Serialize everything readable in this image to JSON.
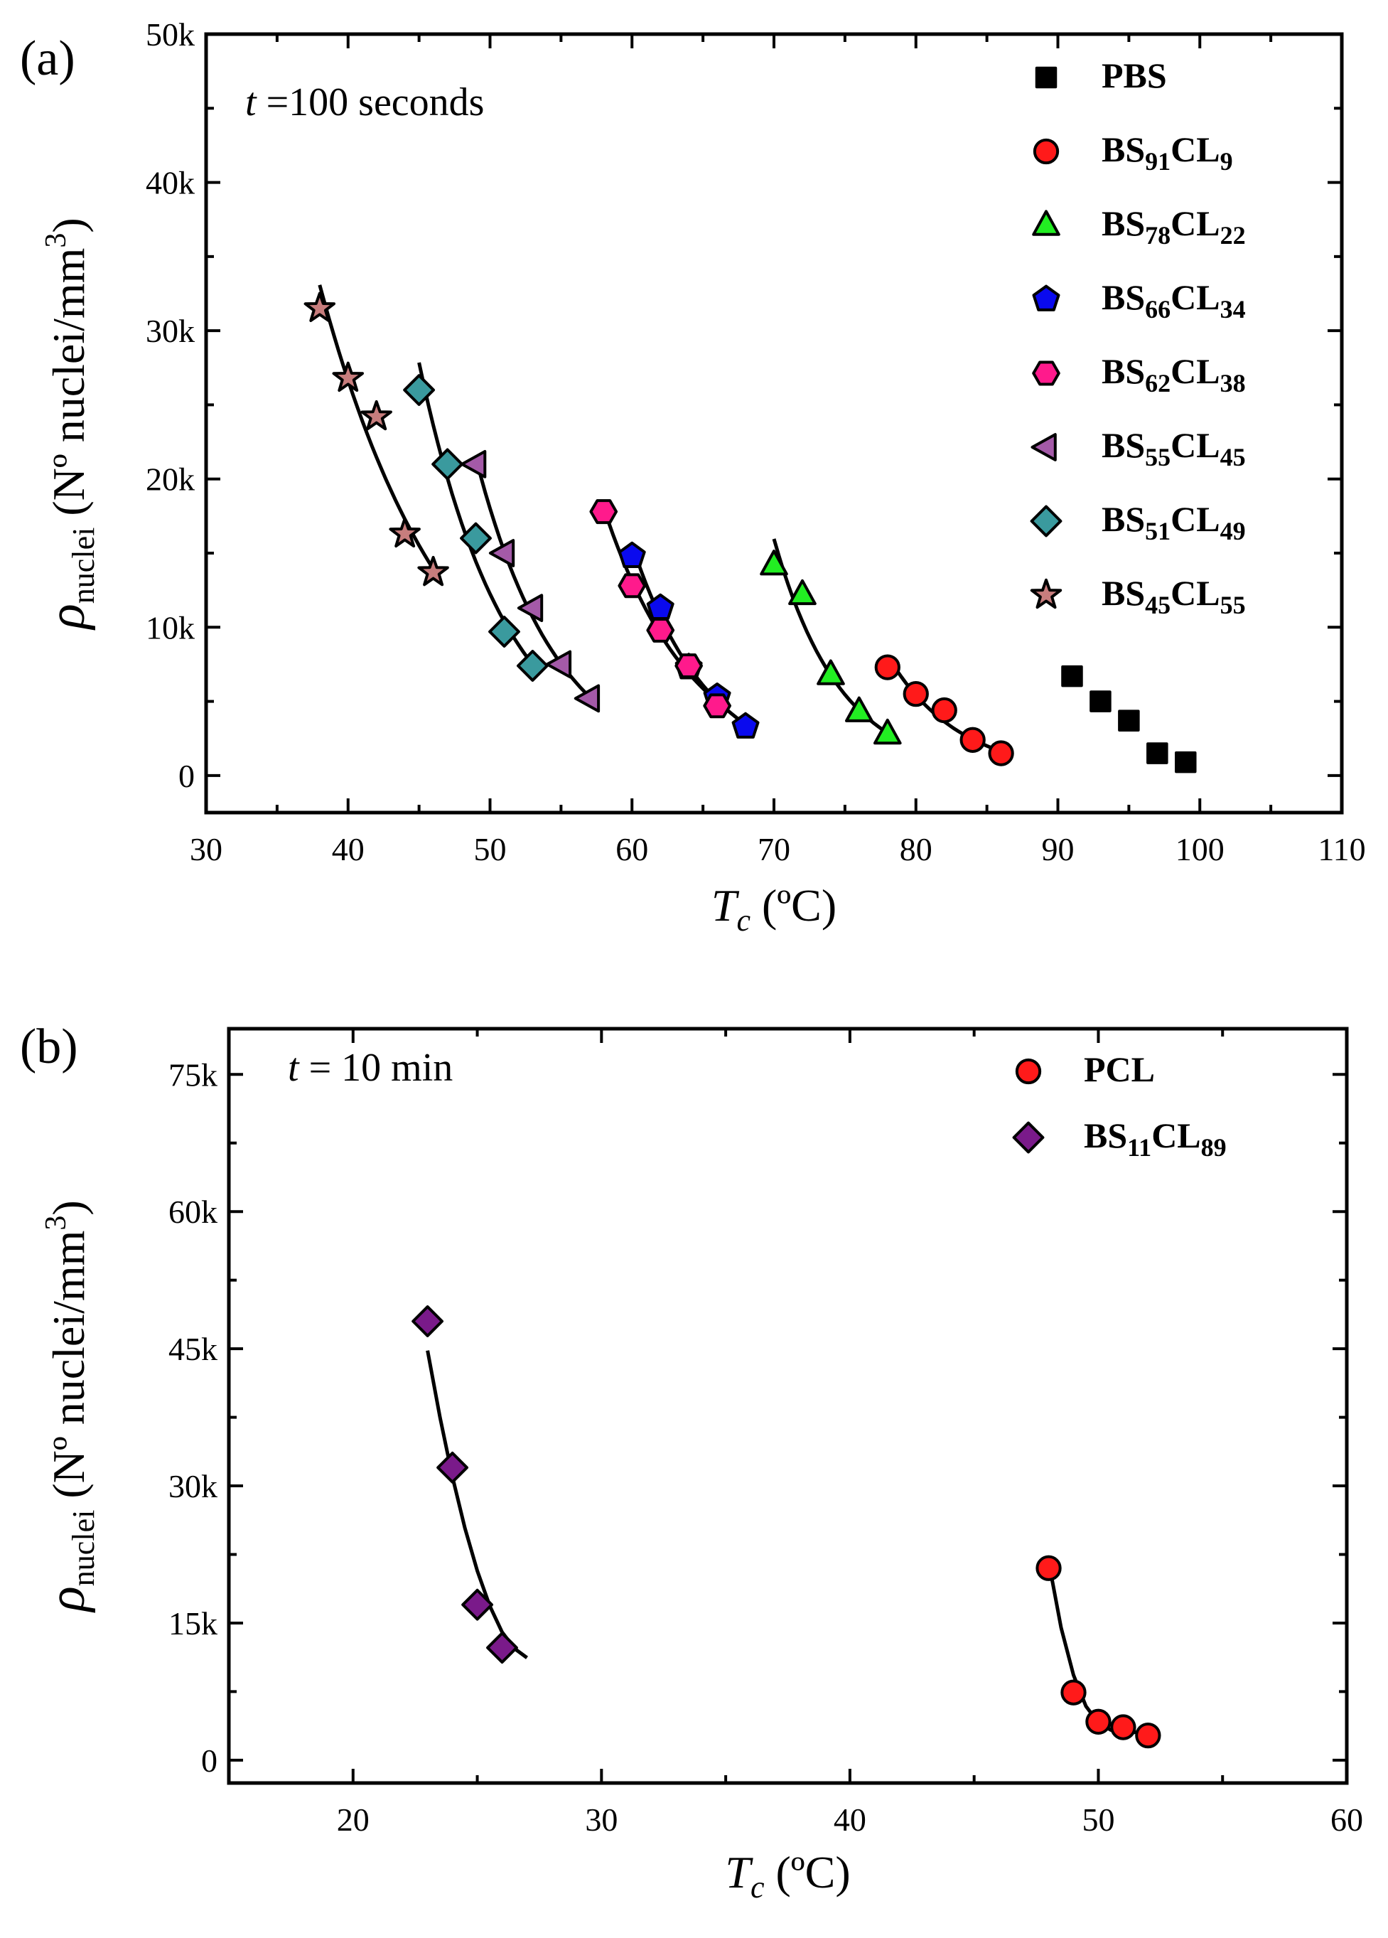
{
  "chart_data": [
    {
      "panel": "(a)",
      "type": "scatter",
      "annotation": {
        "italic": "t",
        "text": " =100 seconds"
      },
      "xlabel": {
        "symbol": "T",
        "sub": "c",
        "unit": " (ºC)"
      },
      "ylabel": {
        "symbol": "ρ",
        "sub": "nuclei",
        "unit": " (Nº nuclei/mm",
        "sup": "3",
        "close": ")"
      },
      "xlim": [
        30,
        110
      ],
      "ylim": [
        -2500,
        50000
      ],
      "xticks": [
        30,
        40,
        50,
        60,
        70,
        80,
        90,
        100,
        110
      ],
      "yticks": [
        0,
        10000,
        20000,
        30000,
        40000,
        50000
      ],
      "ytick_labels": [
        "0",
        "10k",
        "20k",
        "30k",
        "40k",
        "50k"
      ],
      "legend_position": "top-right",
      "series": [
        {
          "name": "PBS",
          "legend": {
            "base": "PBS",
            "parts": []
          },
          "marker": "square",
          "color": "#000000",
          "fit": false,
          "x": [
            91,
            93,
            95,
            97,
            99
          ],
          "y": [
            6700,
            5000,
            3700,
            1500,
            900
          ]
        },
        {
          "name": "BS91CL9",
          "legend": {
            "base": "BS",
            "parts": [
              "91",
              "CL",
              "9"
            ]
          },
          "marker": "circle",
          "color": "#ff1a1a",
          "fit": true,
          "x": [
            78,
            80,
            82,
            84,
            86
          ],
          "y": [
            7300,
            5500,
            4400,
            2400,
            1500
          ]
        },
        {
          "name": "BS78CL22",
          "legend": {
            "base": "BS",
            "parts": [
              "78",
              "CL",
              "22"
            ]
          },
          "marker": "triangle-up",
          "color": "#22ee22",
          "fit": true,
          "x": [
            70,
            72,
            74,
            76,
            78
          ],
          "y": [
            14200,
            12200,
            6800,
            4300,
            2800
          ]
        },
        {
          "name": "BS66CL34",
          "legend": {
            "base": "BS",
            "parts": [
              "66",
              "CL",
              "34"
            ]
          },
          "marker": "pentagon",
          "color": "#0a0aee",
          "fit": true,
          "x": [
            60,
            62,
            64,
            66,
            68
          ],
          "y": [
            14800,
            11300,
            7300,
            5300,
            3300
          ]
        },
        {
          "name": "BS62CL38",
          "legend": {
            "base": "BS",
            "parts": [
              "62",
              "CL",
              "38"
            ]
          },
          "marker": "hexagon",
          "color": "#ff1a8c",
          "fit": true,
          "x": [
            58,
            60,
            62,
            64,
            66
          ],
          "y": [
            17800,
            12800,
            9800,
            7400,
            4700
          ]
        },
        {
          "name": "BS55CL45",
          "legend": {
            "base": "BS",
            "parts": [
              "55",
              "CL",
              "45"
            ]
          },
          "marker": "triangle-left",
          "color": "#a45aa8",
          "fit": true,
          "x": [
            49,
            51,
            53,
            55,
            57
          ],
          "y": [
            21000,
            15000,
            11300,
            7500,
            5200
          ]
        },
        {
          "name": "BS51CL49",
          "legend": {
            "base": "BS",
            "parts": [
              "51",
              "CL",
              "49"
            ]
          },
          "marker": "diamond",
          "color": "#3a9a9e",
          "fit": true,
          "x": [
            45,
            47,
            49,
            51,
            53
          ],
          "y": [
            26000,
            21000,
            16000,
            9700,
            7400
          ]
        },
        {
          "name": "BS45CL55",
          "legend": {
            "base": "BS",
            "parts": [
              "45",
              "CL",
              "55"
            ]
          },
          "marker": "star",
          "color": "#c77d7d",
          "fit": true,
          "x": [
            38,
            40,
            42,
            44,
            46
          ],
          "y": [
            31500,
            26800,
            24200,
            16300,
            13700
          ]
        }
      ]
    },
    {
      "panel": "(b)",
      "type": "scatter",
      "annotation": {
        "italic": "t",
        "text": " = 10 min"
      },
      "xlabel": {
        "symbol": "T",
        "sub": "c",
        "unit": " (ºC)"
      },
      "ylabel": {
        "symbol": "ρ",
        "sub": "nuclei",
        "unit": " (Nº nuclei/mm",
        "sup": "3",
        "close": ")"
      },
      "xlim": [
        15,
        60
      ],
      "ylim": [
        -2500,
        80000
      ],
      "xticks": [
        20,
        30,
        40,
        50,
        60
      ],
      "yticks": [
        0,
        15000,
        30000,
        45000,
        60000,
        75000
      ],
      "ytick_labels": [
        "0",
        "15k",
        "30k",
        "45k",
        "60k",
        "75k"
      ],
      "legend_position": "top-right",
      "series": [
        {
          "name": "PCL",
          "legend": {
            "base": "PCL",
            "parts": []
          },
          "marker": "circle",
          "color": "#ff1a1a",
          "fit": true,
          "fit_curve": {
            "x": [
              48.05,
              48.5,
              49,
              49.5,
              50,
              50.5,
              51,
              51.5,
              52
            ],
            "y": [
              21000,
              14500,
              9300,
              5900,
              4100,
              3300,
              3000,
              3050,
              3200
            ]
          },
          "x": [
            48,
            49,
            50,
            51,
            52
          ],
          "y": [
            21000,
            7400,
            4200,
            3600,
            2700
          ]
        },
        {
          "name": "BS11CL89",
          "legend": {
            "base": "BS",
            "parts": [
              "11",
              "CL",
              "89"
            ]
          },
          "marker": "diamond",
          "color": "#7a1a8a",
          "fit": true,
          "fit_curve": {
            "x": [
              23,
              23.5,
              24,
              24.5,
              25,
              25.5,
              26,
              26.5,
              27
            ],
            "y": [
              44800,
              37500,
              31000,
              25400,
              20700,
              16900,
              14000,
              12200,
              11200
            ]
          },
          "x": [
            23,
            24,
            25,
            26
          ],
          "y": [
            48000,
            32000,
            17000,
            12300
          ]
        }
      ]
    }
  ]
}
